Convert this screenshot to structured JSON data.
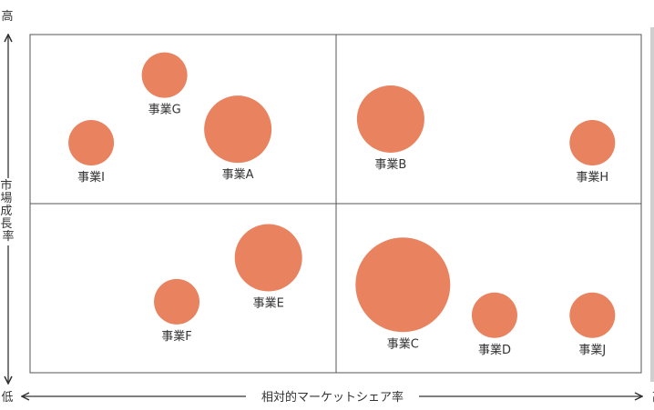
{
  "chart_data": {
    "type": "scatter",
    "title": "",
    "xlabel": "相対的マーケットシェア率",
    "ylabel": "市場成長率",
    "x_low_label": "低",
    "x_high_label": "高",
    "y_low_label": "低",
    "y_high_label": "高",
    "xlim": [
      0,
      100
    ],
    "ylim": [
      0,
      100
    ],
    "quadrant_split": {
      "x": 50,
      "y": 50
    },
    "grid": false,
    "legend": "none",
    "point_color": "#E8825F",
    "points": [
      {
        "label": "事業A",
        "x": 34,
        "y": 72,
        "size": 37
      },
      {
        "label": "事業B",
        "x": 59,
        "y": 75,
        "size": 37
      },
      {
        "label": "事業C",
        "x": 61,
        "y": 26,
        "size": 52
      },
      {
        "label": "事業D",
        "x": 76,
        "y": 17,
        "size": 25
      },
      {
        "label": "事業E",
        "x": 39,
        "y": 34,
        "size": 37
      },
      {
        "label": "事業F",
        "x": 24,
        "y": 21,
        "size": 25
      },
      {
        "label": "事業G",
        "x": 22,
        "y": 88,
        "size": 25
      },
      {
        "label": "事業H",
        "x": 92,
        "y": 68,
        "size": 25
      },
      {
        "label": "事業I",
        "x": 10,
        "y": 68,
        "size": 25
      },
      {
        "label": "事業J",
        "x": 92,
        "y": 17,
        "size": 25
      }
    ]
  }
}
